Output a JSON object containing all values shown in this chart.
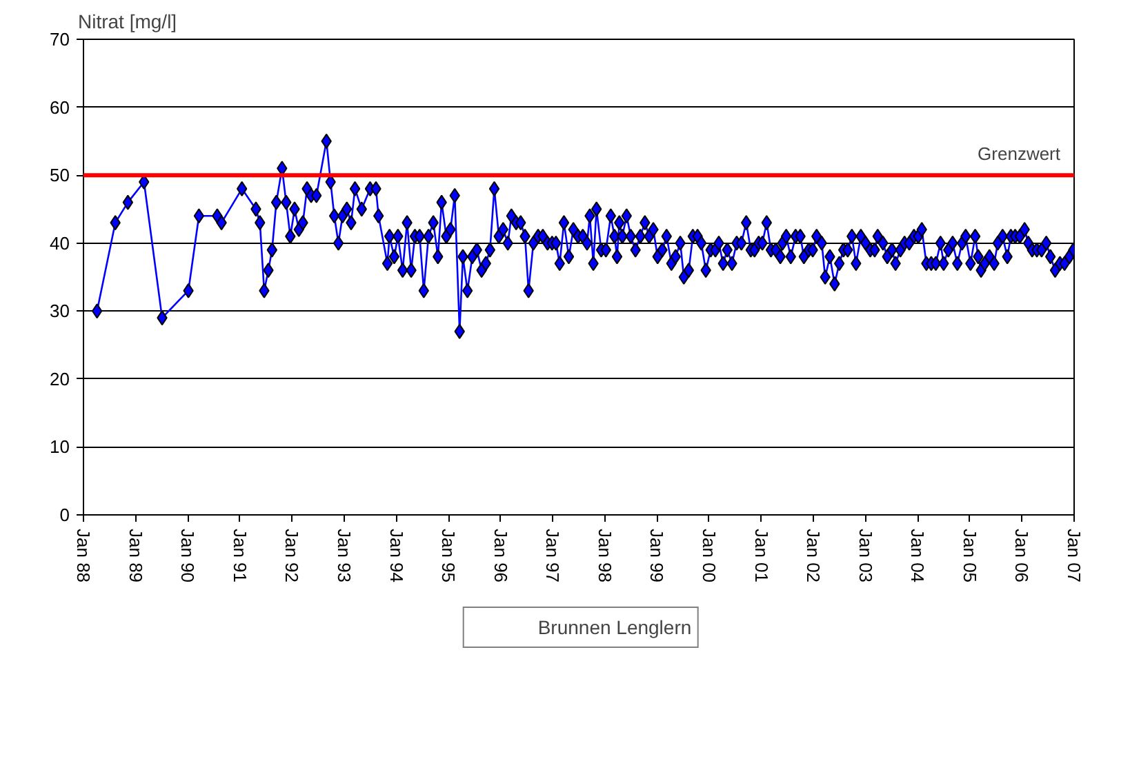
{
  "chart_data": {
    "type": "line",
    "ylabel": "Nitrat [mg/l]",
    "xlim": [
      "1988-01",
      "2007-01"
    ],
    "xticks": [
      {
        "value": "1988-01",
        "label": "Jan 88"
      },
      {
        "value": "1989-01",
        "label": "Jan 89"
      },
      {
        "value": "1990-01",
        "label": "Jan 90"
      },
      {
        "value": "1991-01",
        "label": "Jan 91"
      },
      {
        "value": "1992-01",
        "label": "Jan 92"
      },
      {
        "value": "1993-01",
        "label": "Jan 93"
      },
      {
        "value": "1994-01",
        "label": "Jan 94"
      },
      {
        "value": "1995-01",
        "label": "Jan 95"
      },
      {
        "value": "1996-01",
        "label": "Jan 96"
      },
      {
        "value": "1997-01",
        "label": "Jan 97"
      },
      {
        "value": "1998-01",
        "label": "Jan 98"
      },
      {
        "value": "1999-01",
        "label": "Jan 99"
      },
      {
        "value": "2000-01",
        "label": "Jan 00"
      },
      {
        "value": "2001-01",
        "label": "Jan 01"
      },
      {
        "value": "2002-01",
        "label": "Jan 02"
      },
      {
        "value": "2003-01",
        "label": "Jan 03"
      },
      {
        "value": "2004-01",
        "label": "Jan 04"
      },
      {
        "value": "2005-01",
        "label": "Jan 05"
      },
      {
        "value": "2006-01",
        "label": "Jan 06"
      },
      {
        "value": "2007-01",
        "label": "Jan 07"
      }
    ],
    "ylim": [
      0,
      70
    ],
    "yticks": [
      0,
      10,
      20,
      30,
      40,
      50,
      60,
      70
    ],
    "grid": "y",
    "legend": "bottom",
    "marker": "diamond",
    "line_style": "solid",
    "ref_lines": [
      {
        "axis": "y",
        "value": 50,
        "label": "Grenzwert",
        "color": "#ff0000"
      }
    ],
    "series": [
      {
        "name": "Brunnen Lenglern",
        "color": "#0000ff",
        "x": [
          "1988-04-05",
          "1988-08-11",
          "1988-11-07",
          "1989-02-28",
          "1989-07-05",
          "1990-01-05",
          "1990-03-20",
          "1990-07-26",
          "1990-08-25",
          "1991-01-15",
          "1991-04-23",
          "1991-05-21",
          "1991-06-20",
          "1991-07-19",
          "1991-08-14",
          "1991-09-13",
          "1991-10-23",
          "1991-11-21",
          "1991-12-20",
          "1992-01-19",
          "1992-02-18",
          "1992-03-17",
          "1992-04-15",
          "1992-05-14",
          "1992-06-20",
          "1992-08-29",
          "1992-09-27",
          "1992-10-23",
          "1992-11-21",
          "1992-12-20",
          "1993-01-19",
          "1993-02-18",
          "1993-03-17",
          "1993-05-03",
          "1993-07-01",
          "1993-08-11",
          "1993-08-29",
          "1993-10-30",
          "1993-11-14",
          "1993-12-17",
          "1994-01-12",
          "1994-02-14",
          "1994-03-17",
          "1994-04-15",
          "1994-05-11",
          "1994-06-13",
          "1994-07-12",
          "1994-08-14",
          "1994-09-17",
          "1994-10-19",
          "1994-11-14",
          "1994-12-17",
          "1995-01-15",
          "1995-02-14",
          "1995-03-20",
          "1995-04-12",
          "1995-05-14",
          "1995-06-17",
          "1995-07-19",
          "1995-08-21",
          "1995-09-20",
          "1995-10-19",
          "1995-11-18",
          "1995-12-20",
          "1996-01-19",
          "1996-02-21",
          "1996-03-17",
          "1996-04-19",
          "1996-05-21",
          "1996-06-20",
          "1996-07-15",
          "1996-08-18",
          "1996-09-20",
          "1996-10-23",
          "1996-11-25",
          "1996-12-27",
          "1997-01-23",
          "1997-02-18",
          "1997-03-20",
          "1997-04-23",
          "1997-05-25",
          "1997-06-27",
          "1997-07-30",
          "1997-08-29",
          "1997-09-17",
          "1997-10-12",
          "1997-11-03",
          "1997-12-06",
          "1998-01-08",
          "1998-02-11",
          "1998-03-09",
          "1998-03-27",
          "1998-04-12",
          "1998-05-03",
          "1998-06-02",
          "1998-07-01",
          "1998-08-03",
          "1998-09-06",
          "1998-10-08",
          "1998-11-07",
          "1998-12-06",
          "1999-01-05",
          "1999-02-07",
          "1999-03-09",
          "1999-04-12",
          "1999-05-11",
          "1999-06-13",
          "1999-07-08",
          "1999-08-11",
          "1999-09-09",
          "1999-10-12",
          "1999-11-07",
          "1999-12-09",
          "2000-01-12",
          "2000-02-14",
          "2000-03-09",
          "2000-04-08",
          "2000-05-07",
          "2000-06-09",
          "2000-07-12",
          "2000-08-14",
          "2000-09-17",
          "2000-10-19",
          "2000-11-14",
          "2000-12-13",
          "2001-01-08",
          "2001-02-07",
          "2001-03-09",
          "2001-04-12",
          "2001-05-14",
          "2001-05-29",
          "2001-06-24",
          "2001-07-26",
          "2001-08-29",
          "2001-10-01",
          "2001-10-26",
          "2001-11-29",
          "2001-12-27",
          "2002-01-23",
          "2002-02-28",
          "2002-03-24",
          "2002-04-26",
          "2002-05-29",
          "2002-07-01",
          "2002-07-30",
          "2002-08-29",
          "2002-09-27",
          "2002-10-26",
          "2002-11-29",
          "2003-01-01",
          "2003-02-03",
          "2003-03-06",
          "2003-03-27",
          "2003-05-03",
          "2003-06-02",
          "2003-07-05",
          "2003-07-30",
          "2003-09-02",
          "2003-10-01",
          "2003-11-03",
          "2003-12-06",
          "2004-01-05",
          "2004-01-30",
          "2004-03-02",
          "2004-04-05",
          "2004-05-07",
          "2004-06-09",
          "2004-07-01",
          "2004-08-03",
          "2004-09-02",
          "2004-10-05",
          "2004-11-07",
          "2004-12-02",
          "2005-01-05",
          "2005-02-07",
          "2005-02-28",
          "2005-03-20",
          "2005-04-15",
          "2005-05-18",
          "2005-06-20",
          "2005-07-15",
          "2005-08-18",
          "2005-09-20",
          "2005-10-15",
          "2005-11-14",
          "2005-12-17",
          "2006-01-19",
          "2006-02-14",
          "2006-03-13",
          "2006-04-15",
          "2006-05-18",
          "2006-06-20",
          "2006-07-19",
          "2006-08-21",
          "2006-09-24",
          "2006-10-26",
          "2006-11-29",
          "2006-12-27"
        ],
        "values": [
          30,
          43,
          46,
          49,
          29,
          33,
          44,
          44,
          43,
          48,
          45,
          43,
          33,
          36,
          39,
          46,
          51,
          46,
          41,
          45,
          42,
          43,
          48,
          47,
          47,
          55,
          49,
          44,
          40,
          44,
          45,
          43,
          48,
          45,
          48,
          48,
          44,
          37,
          41,
          38,
          41,
          36,
          43,
          36,
          41,
          41,
          33,
          41,
          43,
          38,
          46,
          41,
          42,
          47,
          27,
          38,
          33,
          38,
          39,
          36,
          37,
          39,
          48,
          41,
          42,
          40,
          44,
          43,
          43,
          41,
          33,
          40,
          41,
          41,
          40,
          40,
          40,
          37,
          43,
          38,
          42,
          41,
          41,
          40,
          44,
          37,
          45,
          39,
          39,
          44,
          41,
          38,
          43,
          41,
          44,
          41,
          39,
          41,
          43,
          41,
          42,
          38,
          39,
          41,
          37,
          38,
          40,
          35,
          36,
          41,
          41,
          40,
          36,
          39,
          39,
          40,
          37,
          39,
          37,
          40,
          40,
          43,
          39,
          39,
          40,
          40,
          43,
          39,
          39,
          38,
          40,
          41,
          38,
          41,
          41,
          38,
          39,
          39,
          41,
          40,
          35,
          38,
          34,
          37,
          39,
          39,
          41,
          37,
          41,
          40,
          39,
          39,
          41,
          40,
          38,
          39,
          37,
          39,
          40,
          40,
          41,
          41,
          42,
          37,
          37,
          37,
          40,
          37,
          39,
          40,
          37,
          40,
          41,
          37,
          41,
          38,
          36,
          37,
          38,
          37,
          40,
          41,
          38,
          41,
          41,
          41,
          42,
          40,
          39,
          39,
          39,
          40,
          38,
          36,
          37,
          37,
          38,
          39
        ]
      }
    ]
  }
}
